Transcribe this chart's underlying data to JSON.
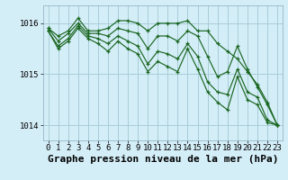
{
  "background_color": "#d4eef8",
  "grid_color": "#a8ccd8",
  "line_color": "#1a6620",
  "xlabel": "Graphe pression niveau de la mer (hPa)",
  "xlabel_fontsize": 8,
  "tick_fontsize": 6.5,
  "xlim": [
    -0.5,
    23.5
  ],
  "ylim": [
    1013.7,
    1016.35
  ],
  "yticks": [
    1014,
    1015,
    1016
  ],
  "xticks": [
    0,
    1,
    2,
    3,
    4,
    5,
    6,
    7,
    8,
    9,
    10,
    11,
    12,
    13,
    14,
    15,
    16,
    17,
    18,
    19,
    20,
    21,
    22,
    23
  ],
  "series": [
    [
      1015.9,
      1015.75,
      1015.85,
      1016.1,
      1015.85,
      1015.85,
      1015.9,
      1016.05,
      1016.05,
      1016.0,
      1015.85,
      1016.0,
      1016.0,
      1016.0,
      1016.05,
      1015.85,
      1015.85,
      1015.6,
      1015.45,
      1015.3,
      1015.05,
      1014.8,
      1014.45,
      1014.0
    ],
    [
      1015.9,
      1015.65,
      1015.8,
      1016.0,
      1015.8,
      1015.8,
      1015.75,
      1015.9,
      1015.85,
      1015.8,
      1015.5,
      1015.75,
      1015.75,
      1015.65,
      1015.85,
      1015.75,
      1015.35,
      1014.95,
      1015.05,
      1015.55,
      1015.1,
      1014.75,
      1014.4,
      1014.0
    ],
    [
      1015.85,
      1015.55,
      1015.7,
      1015.95,
      1015.75,
      1015.7,
      1015.6,
      1015.75,
      1015.65,
      1015.55,
      1015.2,
      1015.45,
      1015.4,
      1015.3,
      1015.6,
      1015.35,
      1014.85,
      1014.65,
      1014.6,
      1015.1,
      1014.65,
      1014.55,
      1014.1,
      1014.0
    ],
    [
      1015.85,
      1015.5,
      1015.65,
      1015.9,
      1015.7,
      1015.6,
      1015.45,
      1015.65,
      1015.5,
      1015.4,
      1015.05,
      1015.25,
      1015.15,
      1015.05,
      1015.5,
      1015.1,
      1014.65,
      1014.45,
      1014.3,
      1014.95,
      1014.5,
      1014.4,
      1014.05,
      1014.0
    ]
  ]
}
